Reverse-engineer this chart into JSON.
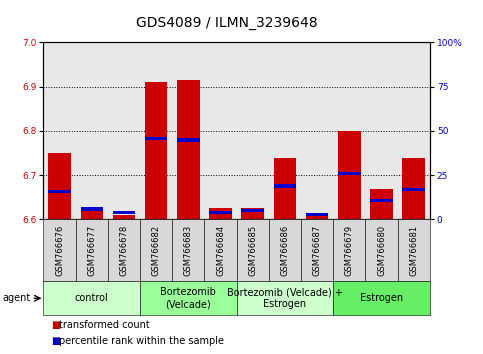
{
  "title": "GDS4089 / ILMN_3239648",
  "samples": [
    "GSM766676",
    "GSM766677",
    "GSM766678",
    "GSM766682",
    "GSM766683",
    "GSM766684",
    "GSM766685",
    "GSM766686",
    "GSM766687",
    "GSM766679",
    "GSM766680",
    "GSM766681"
  ],
  "transformed_count": [
    6.75,
    6.62,
    6.61,
    6.91,
    6.915,
    6.625,
    6.625,
    6.74,
    6.61,
    6.8,
    6.67,
    6.74
  ],
  "percentile_rank": [
    15,
    5,
    3,
    45,
    44,
    3,
    4,
    18,
    2,
    25,
    10,
    16
  ],
  "ylim_left": [
    6.6,
    7.0
  ],
  "ylim_right": [
    0,
    100
  ],
  "yticks_left": [
    6.6,
    6.7,
    6.8,
    6.9,
    7.0
  ],
  "yticks_right": [
    0,
    25,
    50,
    75,
    100
  ],
  "ytick_labels_right": [
    "0",
    "25",
    "50",
    "75",
    "100%"
  ],
  "groups": [
    {
      "label": "control",
      "start": 0,
      "end": 3,
      "color": "#ccffcc"
    },
    {
      "label": "Bortezomib\n(Velcade)",
      "start": 3,
      "end": 6,
      "color": "#99ff99"
    },
    {
      "label": "Bortezomib (Velcade) +\nEstrogen",
      "start": 6,
      "end": 9,
      "color": "#ccffcc"
    },
    {
      "label": "Estrogen",
      "start": 9,
      "end": 12,
      "color": "#66ee66"
    }
  ],
  "bar_color_red": "#cc0000",
  "bar_color_blue": "#0000cc",
  "bar_width": 0.7,
  "background_color": "#ffffff",
  "plot_bg_color": "#e8e8e8",
  "cell_bg_color": "#d8d8d8",
  "title_fontsize": 10,
  "tick_fontsize": 6.5,
  "sample_fontsize": 6,
  "group_fontsize": 7,
  "legend_fontsize": 7
}
